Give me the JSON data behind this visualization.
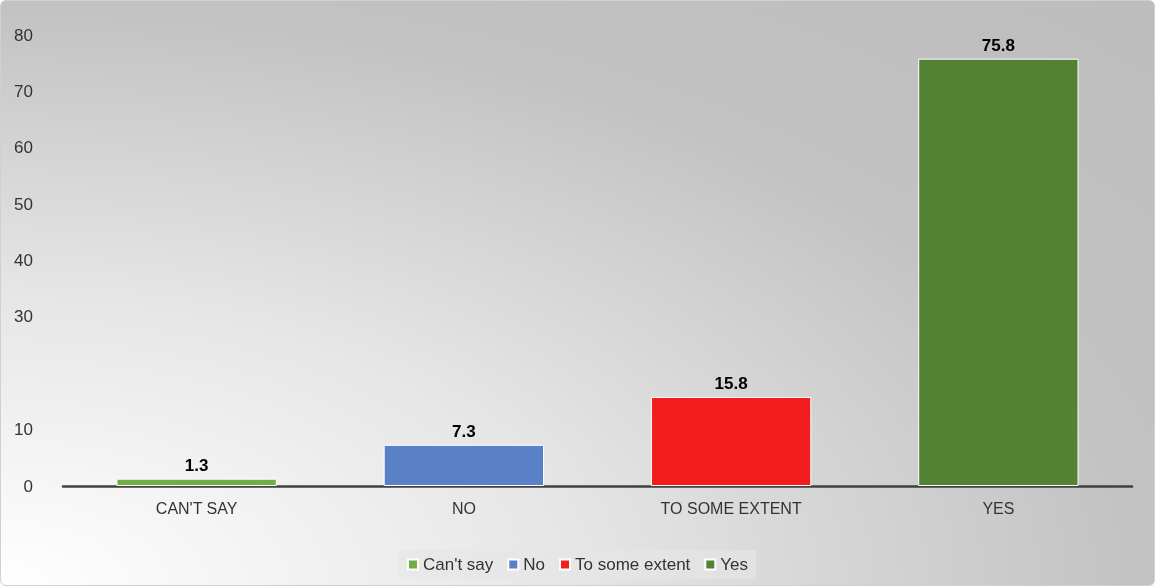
{
  "chart_data": {
    "type": "bar",
    "categories": [
      "CAN'T SAY",
      "NO",
      "TO SOME EXTENT",
      "YES"
    ],
    "series": [
      {
        "name": "Can't say",
        "color": "#70ad47",
        "values": [
          1.3,
          null,
          null,
          null
        ]
      },
      {
        "name": "No",
        "color": "#5a80c8",
        "values": [
          null,
          7.3,
          null,
          null
        ]
      },
      {
        "name": "To some extent",
        "color": "#f21d1d",
        "values": [
          null,
          null,
          15.8,
          null
        ]
      },
      {
        "name": "Yes",
        "color": "#548235",
        "values": [
          null,
          null,
          null,
          75.8
        ]
      }
    ],
    "ylim": [
      0,
      80
    ],
    "yticks": [
      0,
      10,
      30,
      40,
      50,
      60,
      70,
      80
    ],
    "grid": false,
    "legend": "bottom",
    "data_labels": true
  }
}
